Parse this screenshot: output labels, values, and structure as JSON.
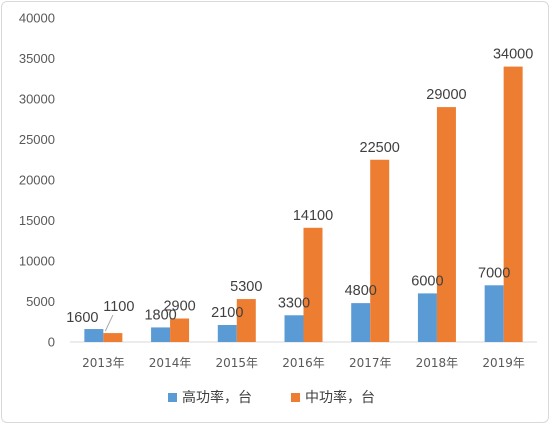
{
  "chart_data": {
    "type": "bar",
    "categories": [
      "2013年",
      "2014年",
      "2015年",
      "2016年",
      "2017年",
      "2018年",
      "2019年"
    ],
    "series": [
      {
        "name": "高功率，台",
        "color": "#5b9bd5",
        "values": [
          1600,
          1800,
          2100,
          3300,
          4800,
          6000,
          7000
        ]
      },
      {
        "name": "中功率，台",
        "color": "#ed7d31",
        "values": [
          1100,
          2900,
          5300,
          14100,
          22500,
          29000,
          34000
        ]
      }
    ],
    "y_ticks": [
      "0",
      "5000",
      "10000",
      "15000",
      "20000",
      "25000",
      "30000",
      "35000",
      "40000"
    ],
    "ylim": [
      0,
      40000
    ],
    "grid": false,
    "legend_position": "bottom",
    "data_labels": true
  }
}
